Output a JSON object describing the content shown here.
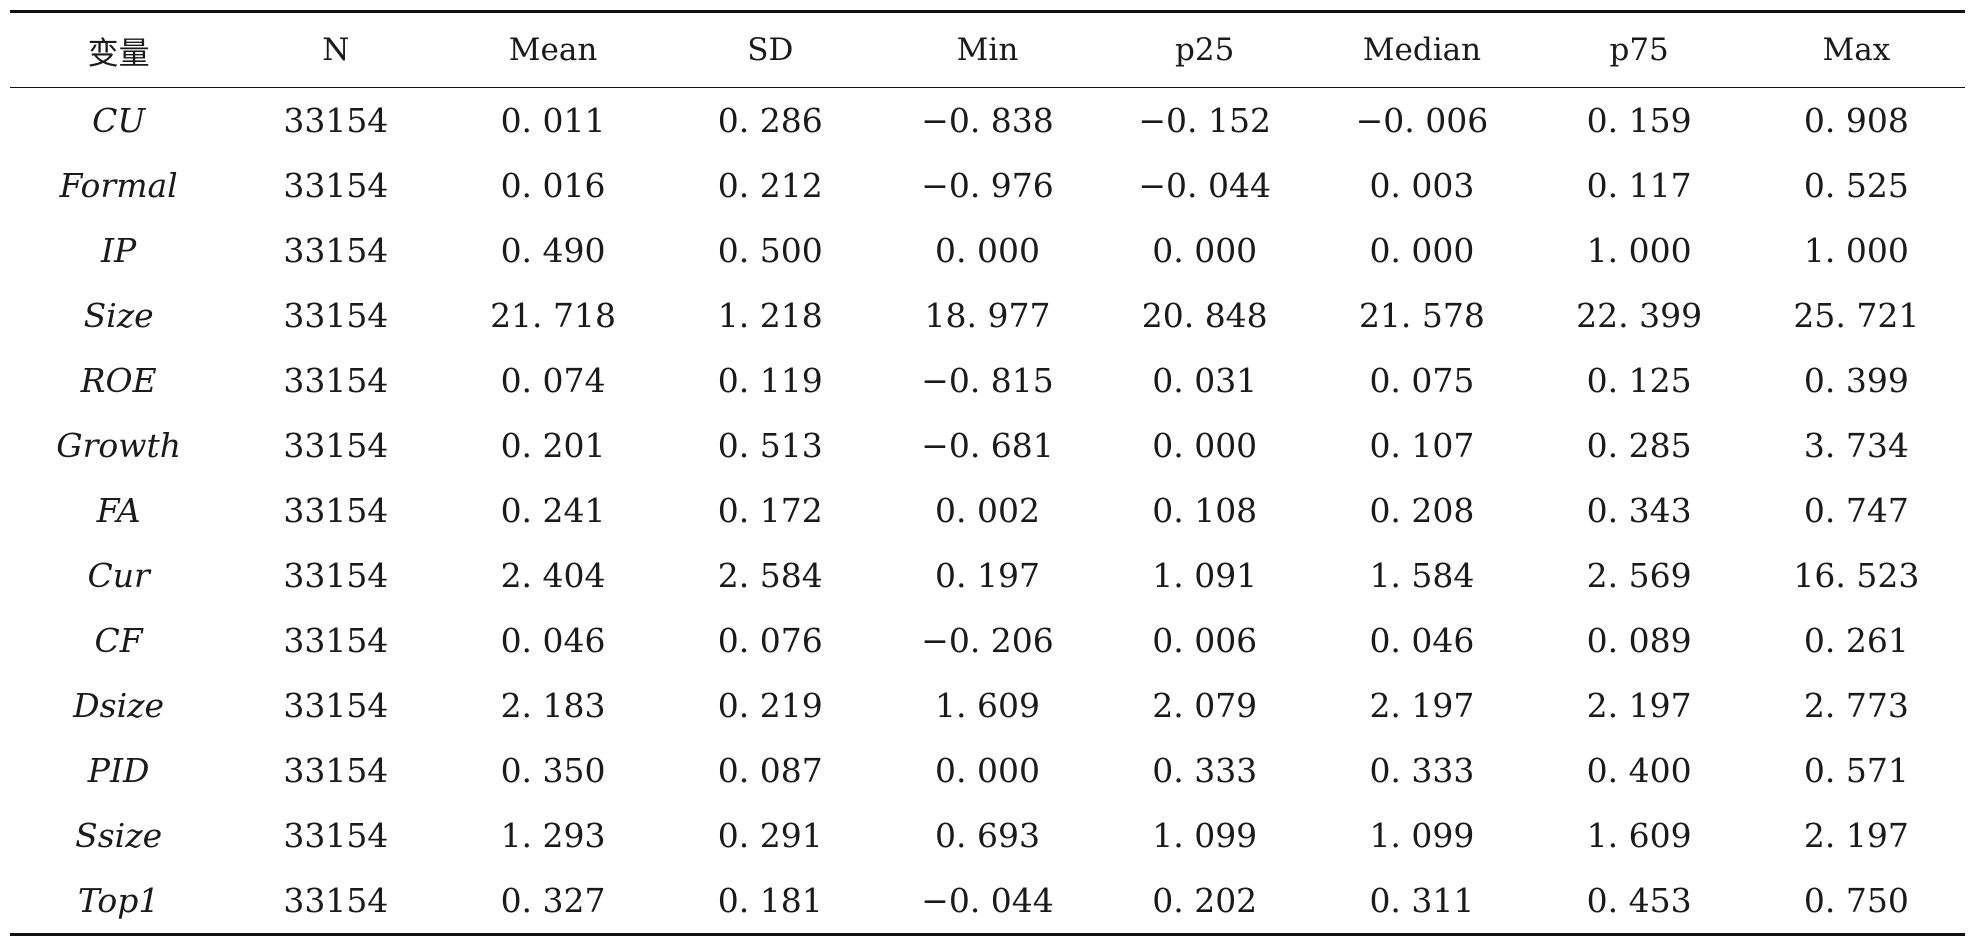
{
  "table": {
    "headers": [
      "变量",
      "N",
      "Mean",
      "SD",
      "Min",
      "p25",
      "Median",
      "p75",
      "Max"
    ],
    "rows": [
      [
        "CU",
        "33154",
        "0. 011",
        "0. 286",
        "−0. 838",
        "−0. 152",
        "−0. 006",
        "0. 159",
        "0. 908"
      ],
      [
        "Formal",
        "33154",
        "0. 016",
        "0. 212",
        "−0. 976",
        "−0. 044",
        "0. 003",
        "0. 117",
        "0. 525"
      ],
      [
        "IP",
        "33154",
        "0. 490",
        "0. 500",
        "0. 000",
        "0. 000",
        "0. 000",
        "1. 000",
        "1. 000"
      ],
      [
        "Size",
        "33154",
        "21. 718",
        "1. 218",
        "18. 977",
        "20. 848",
        "21. 578",
        "22. 399",
        "25. 721"
      ],
      [
        "ROE",
        "33154",
        "0. 074",
        "0. 119",
        "−0. 815",
        "0. 031",
        "0. 075",
        "0. 125",
        "0. 399"
      ],
      [
        "Growth",
        "33154",
        "0. 201",
        "0. 513",
        "−0. 681",
        "0. 000",
        "0. 107",
        "0. 285",
        "3. 734"
      ],
      [
        "FA",
        "33154",
        "0. 241",
        "0. 172",
        "0. 002",
        "0. 108",
        "0. 208",
        "0. 343",
        "0. 747"
      ],
      [
        "Cur",
        "33154",
        "2. 404",
        "2. 584",
        "0. 197",
        "1. 091",
        "1. 584",
        "2. 569",
        "16. 523"
      ],
      [
        "CF",
        "33154",
        "0. 046",
        "0. 076",
        "−0. 206",
        "0. 006",
        "0. 046",
        "0. 089",
        "0. 261"
      ],
      [
        "Dsize",
        "33154",
        "2. 183",
        "0. 219",
        "1. 609",
        "2. 079",
        "2. 197",
        "2. 197",
        "2. 773"
      ],
      [
        "PID",
        "33154",
        "0. 350",
        "0. 087",
        "0. 000",
        "0. 333",
        "0. 333",
        "0. 400",
        "0. 571"
      ],
      [
        "Ssize",
        "33154",
        "1. 293",
        "0. 291",
        "0. 693",
        "1. 099",
        "1. 099",
        "1. 609",
        "2. 197"
      ],
      [
        "Top1",
        "33154",
        "0. 327",
        "0. 181",
        "−0. 044",
        "0. 202",
        "0. 311",
        "0. 453",
        "0. 750"
      ]
    ]
  }
}
